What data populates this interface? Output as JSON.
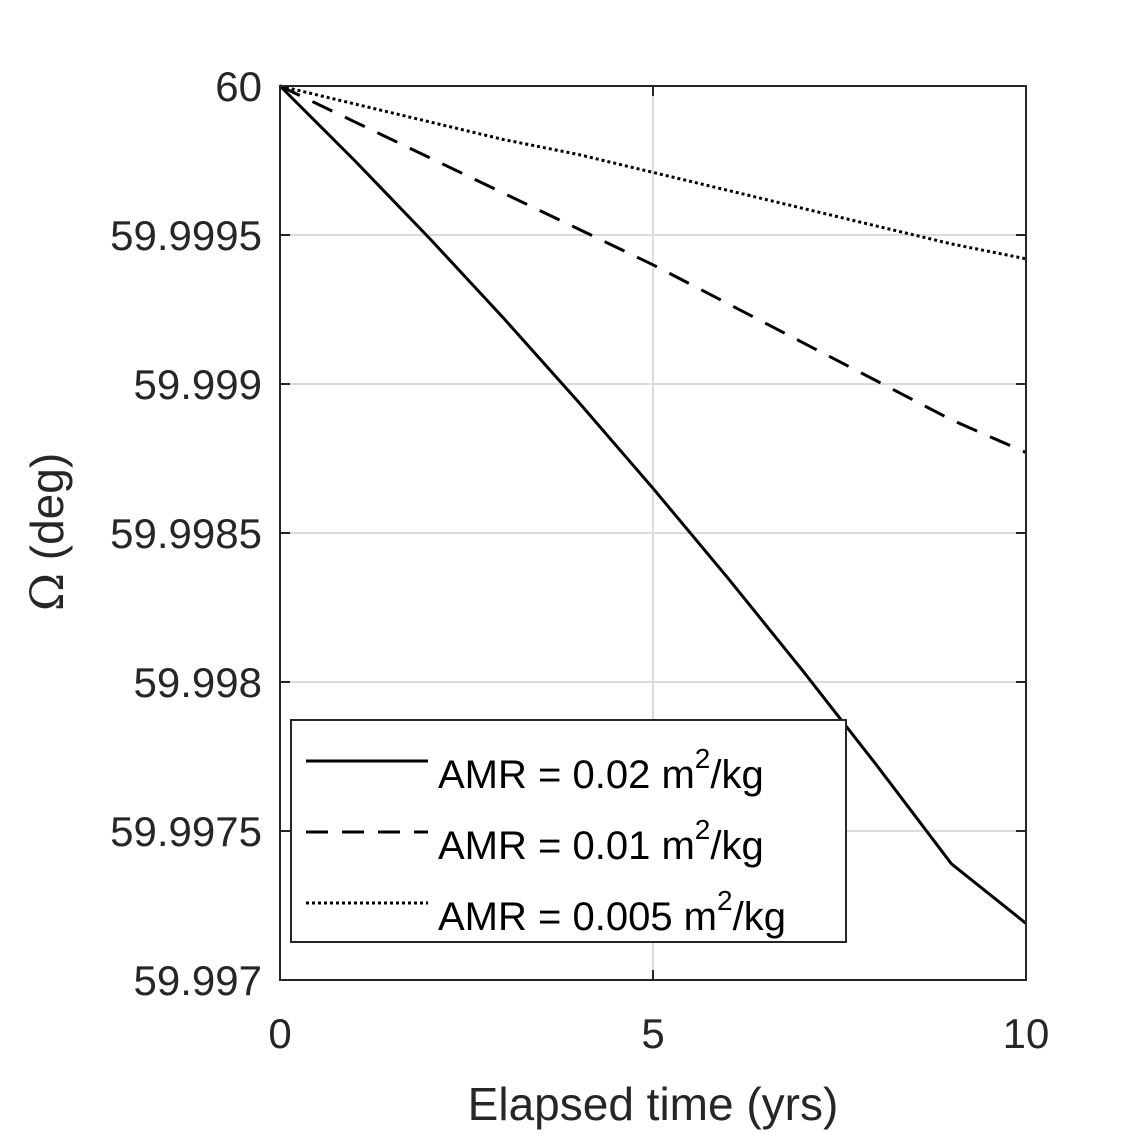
{
  "chart_data": {
    "type": "line",
    "xlabel": "Elapsed time (yrs)",
    "ylabel_symbol": "Ω",
    "ylabel_unit": "(deg)",
    "xlim": [
      0,
      10
    ],
    "ylim": [
      59.997,
      60
    ],
    "xticks": [
      0,
      5,
      10
    ],
    "xtick_labels": [
      "0",
      "5",
      "10"
    ],
    "yticks": [
      59.997,
      59.9975,
      59.998,
      59.9985,
      59.999,
      59.9995,
      60
    ],
    "ytick_labels": [
      "59.997",
      "59.9975",
      "59.998",
      "59.9985",
      "59.999",
      "59.9995",
      "60"
    ],
    "grid": true,
    "legend_position": "bottom-left",
    "series": [
      {
        "name": "AMR = 0.02 m²/kg",
        "label_prefix": "AMR = 0.02 m",
        "label_sup": "2",
        "label_suffix": "/kg",
        "line_style": "solid",
        "x": [
          0,
          1,
          2,
          3,
          4,
          5,
          6,
          7,
          8,
          9,
          10
        ],
        "values": [
          60.0,
          59.99975,
          59.99949,
          59.99922,
          59.99894,
          59.99865,
          59.99835,
          59.99804,
          59.99772,
          59.99739,
          59.99719
        ]
      },
      {
        "name": "AMR = 0.01 m²/kg",
        "label_prefix": "AMR = 0.01 m",
        "label_sup": "2",
        "label_suffix": "/kg",
        "line_style": "dashed",
        "x": [
          0,
          1,
          2,
          3,
          4,
          5,
          6,
          7,
          8,
          9,
          10
        ],
        "values": [
          60.0,
          59.99988,
          59.99976,
          59.99964,
          59.99952,
          59.9994,
          59.99927,
          59.99914,
          59.99901,
          59.99888,
          59.99877
        ]
      },
      {
        "name": "AMR = 0.005 m²/kg",
        "label_prefix": "AMR = 0.005 m",
        "label_sup": "2",
        "label_suffix": "/kg",
        "line_style": "dotted",
        "x": [
          0,
          1,
          2,
          3,
          4,
          5,
          6,
          7,
          8,
          9,
          10
        ],
        "values": [
          60.0,
          59.99994,
          59.99988,
          59.99982,
          59.99977,
          59.99971,
          59.99965,
          59.99959,
          59.99953,
          59.99947,
          59.99942
        ]
      }
    ]
  }
}
